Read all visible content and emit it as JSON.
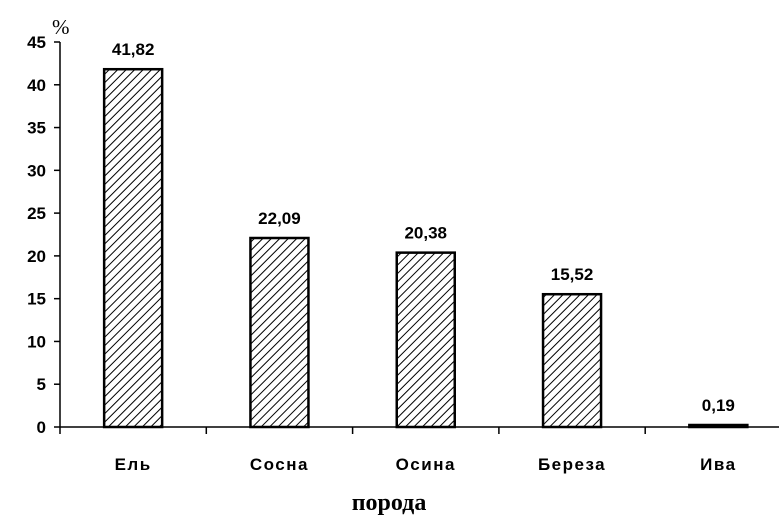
{
  "chart_data": {
    "type": "bar",
    "categories": [
      "Ель",
      "Сосна",
      "Осина",
      "Береза",
      "Ива"
    ],
    "values": [
      41.82,
      22.09,
      20.38,
      15.52,
      0.19
    ],
    "data_labels": [
      "41,82",
      "22,09",
      "20,38",
      "15,52",
      "0,19"
    ],
    "xlabel": "порода",
    "ylabel": "%",
    "ylim": [
      0,
      45
    ],
    "yticks": [
      0,
      5,
      10,
      15,
      20,
      25,
      30,
      35,
      40,
      45
    ],
    "ytick_labels": [
      "0",
      "5",
      "10",
      "15",
      "20",
      "25",
      "30",
      "35",
      "40",
      "45"
    ],
    "grid": false,
    "legend": "none",
    "bar_fill": "diagonal hatch (black on white)",
    "colors": {
      "ink": "#000000",
      "background": "#ffffff"
    }
  }
}
